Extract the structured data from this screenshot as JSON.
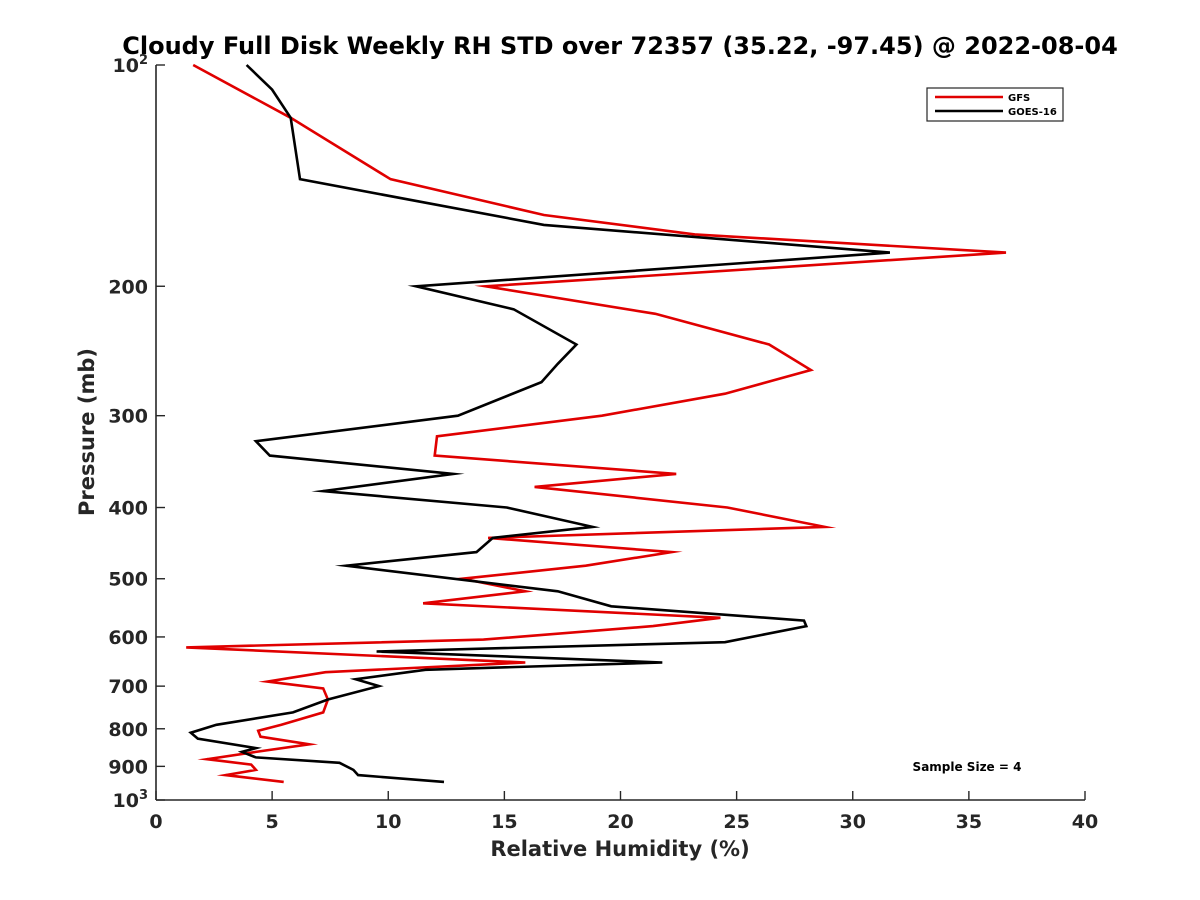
{
  "chart_data": {
    "type": "line",
    "title": "Cloudy Full Disk Weekly RH STD over 72357 (35.22, -97.45) @ 2022-08-04",
    "xlabel": "Relative Humidity (%)",
    "ylabel": "Pressure (mb)",
    "xlim": [
      0,
      40
    ],
    "ylim": [
      100,
      1000
    ],
    "y_scale": "log",
    "y_reversed": true,
    "x_ticks": [
      0,
      5,
      10,
      15,
      20,
      25,
      30,
      35,
      40
    ],
    "x_tick_labels": [
      "0",
      "5",
      "10",
      "15",
      "20",
      "25",
      "30",
      "35",
      "40"
    ],
    "y_ticks": [
      100,
      200,
      300,
      400,
      500,
      600,
      700,
      800,
      900,
      1000
    ],
    "y_tick_labels": [
      {
        "base": "10",
        "sup": "2"
      },
      {
        "base": "200",
        "sup": ""
      },
      {
        "base": "300",
        "sup": ""
      },
      {
        "base": "400",
        "sup": ""
      },
      {
        "base": "500",
        "sup": ""
      },
      {
        "base": "600",
        "sup": ""
      },
      {
        "base": "700",
        "sup": ""
      },
      {
        "base": "800",
        "sup": ""
      },
      {
        "base": "900",
        "sup": ""
      },
      {
        "base": "10",
        "sup": "3"
      }
    ],
    "grid": false,
    "legend_position": "top-right",
    "annotation": "Sample Size = 4",
    "series": [
      {
        "name": "GFS",
        "color": "#e00000",
        "points": [
          [
            1.6,
            100
          ],
          [
            5.8,
            118
          ],
          [
            10.1,
            143
          ],
          [
            16.7,
            160
          ],
          [
            23.2,
            170
          ],
          [
            36.6,
            180
          ],
          [
            14.2,
            200
          ],
          [
            21.5,
            218
          ],
          [
            26.4,
            240
          ],
          [
            28.2,
            260
          ],
          [
            24.5,
            280
          ],
          [
            19.2,
            300
          ],
          [
            12.1,
            320
          ],
          [
            12.0,
            340
          ],
          [
            22.4,
            360
          ],
          [
            16.3,
            375
          ],
          [
            24.6,
            400
          ],
          [
            28.8,
            425
          ],
          [
            14.3,
            440
          ],
          [
            22.2,
            460
          ],
          [
            18.5,
            480
          ],
          [
            13.2,
            500
          ],
          [
            15.9,
            520
          ],
          [
            11.5,
            540
          ],
          [
            24.3,
            565
          ],
          [
            21.4,
            580
          ],
          [
            14.1,
            605
          ],
          [
            1.3,
            620
          ],
          [
            15.9,
            650
          ],
          [
            7.3,
            670
          ],
          [
            4.8,
            690
          ],
          [
            7.2,
            705
          ],
          [
            7.4,
            730
          ],
          [
            7.2,
            760
          ],
          [
            5.4,
            790
          ],
          [
            4.4,
            805
          ],
          [
            4.5,
            820
          ],
          [
            6.6,
            840
          ],
          [
            4.3,
            860
          ],
          [
            2.2,
            880
          ],
          [
            4.1,
            895
          ],
          [
            4.3,
            910
          ],
          [
            3.0,
            925
          ],
          [
            5.5,
            945
          ]
        ]
      },
      {
        "name": "GOES-16",
        "color": "#000000",
        "points": [
          [
            3.9,
            100
          ],
          [
            5.0,
            108
          ],
          [
            5.8,
            118
          ],
          [
            6.2,
            143
          ],
          [
            16.7,
            165
          ],
          [
            31.6,
            180
          ],
          [
            11.2,
            200
          ],
          [
            15.4,
            215
          ],
          [
            18.1,
            240
          ],
          [
            17.3,
            255
          ],
          [
            16.6,
            270
          ],
          [
            13.0,
            300
          ],
          [
            4.3,
            325
          ],
          [
            4.9,
            340
          ],
          [
            12.8,
            360
          ],
          [
            7.2,
            380
          ],
          [
            15.1,
            400
          ],
          [
            18.8,
            425
          ],
          [
            14.5,
            440
          ],
          [
            13.8,
            460
          ],
          [
            8.2,
            480
          ],
          [
            17.3,
            520
          ],
          [
            19.6,
            545
          ],
          [
            27.9,
            570
          ],
          [
            28.0,
            580
          ],
          [
            24.5,
            610
          ],
          [
            9.5,
            628
          ],
          [
            21.8,
            650
          ],
          [
            11.6,
            665
          ],
          [
            8.6,
            685
          ],
          [
            9.6,
            700
          ],
          [
            7.4,
            730
          ],
          [
            5.9,
            760
          ],
          [
            2.6,
            790
          ],
          [
            1.5,
            810
          ],
          [
            1.8,
            825
          ],
          [
            4.3,
            850
          ],
          [
            3.7,
            860
          ],
          [
            4.3,
            875
          ],
          [
            7.9,
            890
          ],
          [
            8.5,
            910
          ],
          [
            8.7,
            925
          ],
          [
            12.4,
            945
          ]
        ]
      }
    ]
  }
}
